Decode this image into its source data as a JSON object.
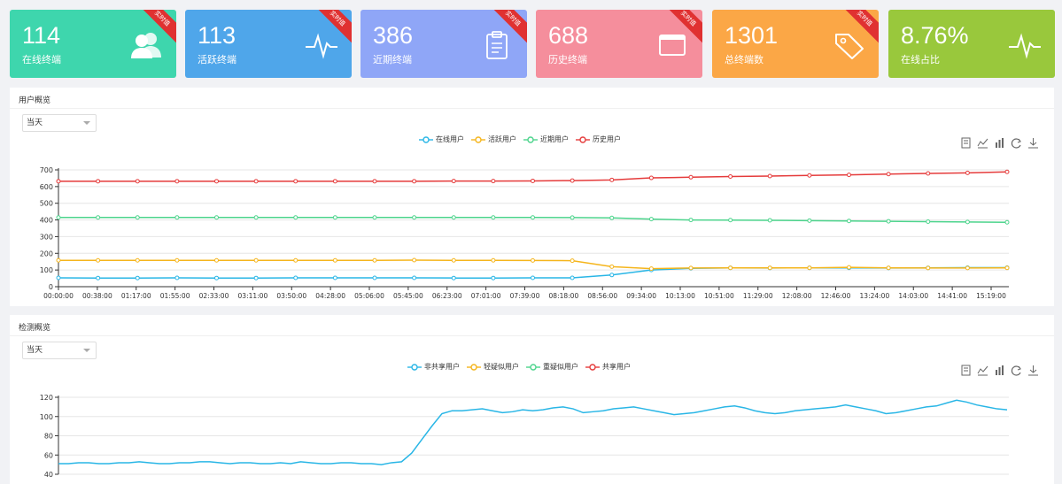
{
  "cards": [
    {
      "value": "114",
      "label": "在线终端",
      "badge": "实时值",
      "color": "#3ed6ad",
      "icon": "users-icon"
    },
    {
      "value": "113",
      "label": "活跃终端",
      "badge": "实时值",
      "color": "#4fa6ea",
      "icon": "pulse-icon"
    },
    {
      "value": "386",
      "label": "近期终端",
      "badge": "实时值",
      "color": "#8fa6f7",
      "icon": "clipboard-icon"
    },
    {
      "value": "688",
      "label": "历史终端",
      "badge": "实时值",
      "color": "#f58e9c",
      "icon": "window-icon"
    },
    {
      "value": "1301",
      "label": "总终端数",
      "badge": "实时值",
      "color": "#fba746",
      "icon": "tag-icon"
    },
    {
      "value": "8.76%",
      "label": "在线占比",
      "badge": "",
      "color": "#99c83c",
      "icon": "pulse-icon"
    }
  ],
  "user_panel": {
    "title": "用户概览",
    "select_value": "当天",
    "tools": [
      "data-view-icon",
      "line-chart-icon",
      "bar-chart-icon",
      "refresh-icon",
      "download-icon"
    ]
  },
  "detect_panel": {
    "title": "检测概览",
    "select_value": "当天",
    "tools": [
      "data-view-icon",
      "line-chart-icon",
      "bar-chart-icon",
      "refresh-icon",
      "download-icon"
    ]
  },
  "chart_data": [
    {
      "type": "line",
      "x": [
        "00:00:00",
        "00:38:00",
        "01:17:00",
        "01:55:00",
        "02:33:00",
        "03:11:00",
        "03:50:00",
        "04:28:00",
        "05:06:00",
        "05:45:00",
        "06:23:00",
        "07:01:00",
        "07:39:00",
        "08:18:00",
        "08:56:00",
        "09:34:00",
        "10:13:00",
        "10:51:00",
        "11:29:00",
        "12:08:00",
        "12:46:00",
        "13:24:00",
        "14:03:00",
        "14:41:00",
        "15:19:00"
      ],
      "ylim": [
        0,
        700
      ],
      "yticks": [
        0,
        100,
        200,
        300,
        400,
        500,
        600,
        700
      ],
      "grid": true,
      "legend_position": "top-center",
      "series": [
        {
          "name": "在线用户",
          "color": "#29b6e6",
          "values": [
            53,
            52,
            52,
            53,
            52,
            52,
            53,
            53,
            53,
            53,
            52,
            52,
            53,
            53,
            70,
            100,
            110,
            113,
            112,
            113,
            113,
            112,
            113,
            114,
            114
          ]
        },
        {
          "name": "活跃用户",
          "color": "#f5b51c",
          "values": [
            158,
            158,
            158,
            158,
            158,
            158,
            158,
            158,
            158,
            159,
            158,
            158,
            157,
            156,
            120,
            108,
            112,
            113,
            113,
            113,
            116,
            113,
            112,
            112,
            113
          ]
        },
        {
          "name": "近期用户",
          "color": "#4cd48c",
          "values": [
            415,
            415,
            415,
            415,
            415,
            415,
            415,
            415,
            415,
            415,
            415,
            415,
            415,
            414,
            412,
            405,
            400,
            399,
            398,
            396,
            394,
            392,
            390,
            388,
            386
          ]
        },
        {
          "name": "历史用户",
          "color": "#e53b3b",
          "values": [
            632,
            632,
            632,
            632,
            632,
            632,
            632,
            632,
            632,
            632,
            633,
            633,
            634,
            636,
            640,
            652,
            656,
            660,
            663,
            667,
            670,
            675,
            679,
            682,
            688
          ]
        }
      ]
    },
    {
      "type": "line",
      "ylim": [
        40,
        120
      ],
      "yticks": [
        40,
        60,
        80,
        100,
        120
      ],
      "grid": true,
      "legend_position": "top-center",
      "series": [
        {
          "name": "非共享用户",
          "color": "#29b6e6",
          "values": [
            51,
            51,
            52,
            52,
            51,
            51,
            52,
            52,
            53,
            52,
            51,
            51,
            52,
            52,
            53,
            53,
            52,
            51,
            52,
            52,
            51,
            51,
            52,
            51,
            53,
            52,
            51,
            51,
            52,
            52,
            51,
            51,
            50,
            52,
            53,
            62,
            76,
            90,
            103,
            106,
            106,
            107,
            108,
            106,
            104,
            105,
            107,
            106,
            107,
            109,
            110,
            108,
            104,
            105,
            106,
            108,
            109,
            110,
            108,
            106,
            104,
            102,
            103,
            104,
            106,
            108,
            110,
            111,
            109,
            106,
            104,
            103,
            104,
            106,
            107,
            108,
            109,
            110,
            112,
            110,
            108,
            106,
            103,
            104,
            106,
            108,
            110,
            111,
            114,
            117,
            115,
            112,
            110,
            108,
            107
          ]
        },
        {
          "name": "轻疑似用户",
          "color": "#f5b51c",
          "values": []
        },
        {
          "name": "重疑似用户",
          "color": "#4cd48c",
          "values": []
        },
        {
          "name": "共享用户",
          "color": "#e53b3b",
          "values": []
        }
      ]
    }
  ]
}
